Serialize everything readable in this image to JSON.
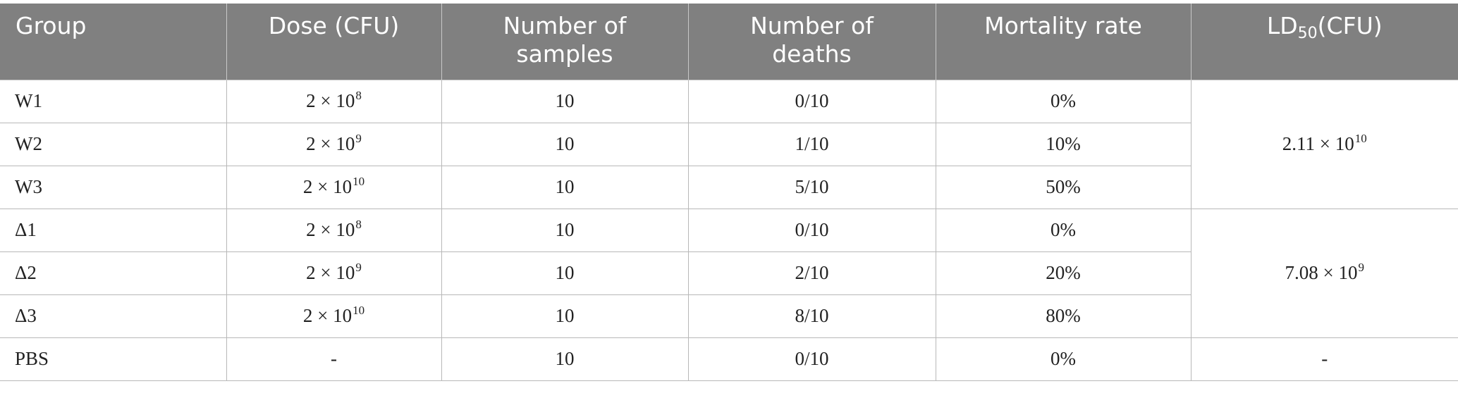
{
  "header": {
    "group": "Group",
    "dose": "Dose (CFU)",
    "samples_line1": "Number of",
    "samples_line2": "samples",
    "deaths_line1": "Number of",
    "deaths_line2": "deaths",
    "mortality": "Mortality rate",
    "ld50_main": "LD",
    "ld50_sub": "50",
    "ld50_unit": "(CFU)"
  },
  "rows": [
    {
      "group": "W1",
      "dose_base": "2 × 10",
      "dose_exp": "8",
      "samples": "10",
      "deaths": "0/10",
      "mortality": "0%"
    },
    {
      "group": "W2",
      "dose_base": "2 × 10",
      "dose_exp": "9",
      "samples": "10",
      "deaths": "1/10",
      "mortality": "10%"
    },
    {
      "group": "W3",
      "dose_base": "2 × 10",
      "dose_exp": "10",
      "samples": "10",
      "deaths": "5/10",
      "mortality": "50%"
    },
    {
      "group": "Δ1",
      "dose_base": "2 × 10",
      "dose_exp": "8",
      "samples": "10",
      "deaths": "0/10",
      "mortality": "0%"
    },
    {
      "group": "Δ2",
      "dose_base": "2 × 10",
      "dose_exp": "9",
      "samples": "10",
      "deaths": "2/10",
      "mortality": "20%"
    },
    {
      "group": "Δ3",
      "dose_base": "2 × 10",
      "dose_exp": "10",
      "samples": "10",
      "deaths": "8/10",
      "mortality": "80%"
    },
    {
      "group": "PBS",
      "dose_plain": "-",
      "samples": "10",
      "deaths": "0/10",
      "mortality": "0%"
    }
  ],
  "ld50": {
    "wild": {
      "base": "2.11 × 10",
      "exp": "10"
    },
    "mutant": {
      "base": "7.08 × 10",
      "exp": "9"
    },
    "pbs": "-"
  }
}
